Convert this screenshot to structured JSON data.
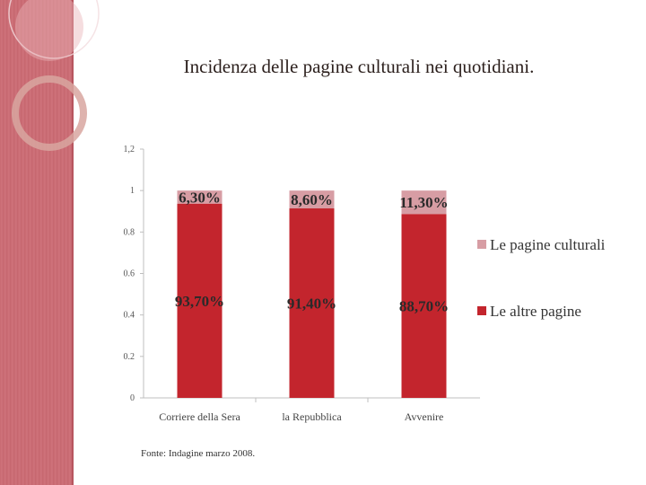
{
  "title": "Incidenza delle pagine culturali nei quotidiani.",
  "source": "Fonte: Indagine marzo 2008.",
  "colors": {
    "culturali": "#d79da4",
    "altre": "#c3252d",
    "band": "#c96a72"
  },
  "chart_data": {
    "type": "bar",
    "stacked": true,
    "categories": [
      "Corriere della Sera",
      "la Repubblica",
      "Avvenire"
    ],
    "series": [
      {
        "name": "Le altre pagine",
        "values": [
          0.937,
          0.914,
          0.887
        ],
        "labels": [
          "93,70%",
          "91,40%",
          "88,70%"
        ]
      },
      {
        "name": "Le pagine culturali",
        "values": [
          0.063,
          0.086,
          0.113
        ],
        "labels": [
          "6,30%",
          "8,60%",
          "11,30%"
        ]
      }
    ],
    "ylim": [
      0,
      1.2
    ],
    "yticks": [
      "0",
      "0.2",
      "0.4",
      "0.6",
      "0.8",
      "1",
      "1,2"
    ],
    "legend": "right",
    "grid": false
  }
}
